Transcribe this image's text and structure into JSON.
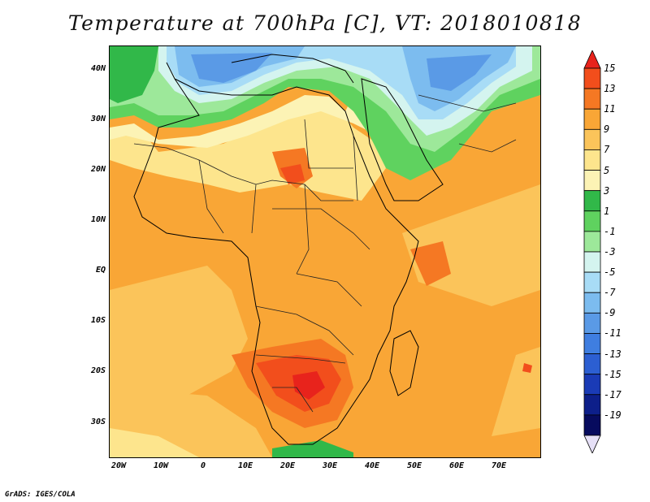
{
  "title": "Temperature at 700hPa [C], VT: 2018010818",
  "credit": "GrADS: IGES/COLA",
  "lat_labels": [
    "40N",
    "30N",
    "20N",
    "10N",
    "EQ",
    "10S",
    "20S",
    "30S"
  ],
  "lon_labels": [
    "20W",
    "10W",
    "0",
    "10E",
    "20E",
    "30E",
    "40E",
    "50E",
    "60E",
    "70E"
  ],
  "colorbar": {
    "labels": [
      "15",
      "13",
      "11",
      "9",
      "7",
      "5",
      "3",
      "1",
      "-1",
      "-3",
      "-5",
      "-7",
      "-9",
      "-11",
      "-13",
      "-15",
      "-17",
      "-19"
    ],
    "colors": [
      "#e8231c",
      "#f24e1c",
      "#f57823",
      "#f9a636",
      "#fbc45a",
      "#fde58d",
      "#fcf3b5",
      "#31b849",
      "#5fd25f",
      "#9de89a",
      "#d4f4ef",
      "#a8dcf6",
      "#7cbcef",
      "#5a9ae6",
      "#3f7ee0",
      "#2c5fd2",
      "#1a3bb6",
      "#0d1f8a",
      "#070b5e",
      "#e6e0f7"
    ]
  }
}
